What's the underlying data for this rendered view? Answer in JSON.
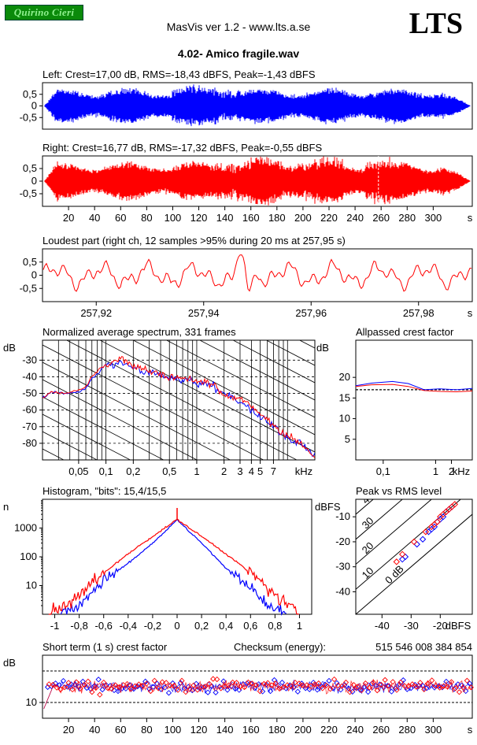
{
  "header": {
    "badge_text": "Quirino Cieri",
    "app_title": "MasVis ver 1.2 - www.lts.a.se",
    "logo": "LTS",
    "file_name": "4.02- Amico fragile.wav"
  },
  "colors": {
    "left": "#0000ff",
    "right": "#ff0000",
    "grid": "#000000"
  },
  "chart_data": [
    {
      "id": "left-waveform",
      "type": "area",
      "title": "Left: Crest=17,00 dB, RMS=-18,43 dBFS, Peak=-1,43 dBFS",
      "yticks": [
        "0,5",
        "0",
        "-0,5"
      ],
      "ytick_values": [
        0.5,
        0,
        -0.5
      ],
      "ylim": [
        -1,
        1
      ],
      "xlim": [
        0,
        330
      ],
      "series": [
        {
          "values": "audio waveform envelope"
        }
      ]
    },
    {
      "id": "right-waveform",
      "type": "area",
      "title": "Right: Crest=16,77 dB, RMS=-17,32 dBFS, Peak=-0,55 dBFS",
      "yticks": [
        "0,5",
        "0",
        "-0,5"
      ],
      "ytick_values": [
        0.5,
        0,
        -0.5
      ],
      "ylim": [
        -1,
        1
      ],
      "xlim": [
        0,
        330
      ],
      "xticks": [
        "20",
        "40",
        "60",
        "80",
        "100",
        "120",
        "140",
        "160",
        "180",
        "200",
        "220",
        "240",
        "260",
        "280",
        "300",
        "s"
      ],
      "xtick_values": [
        20,
        40,
        60,
        80,
        100,
        120,
        140,
        160,
        180,
        200,
        220,
        240,
        260,
        280,
        300
      ],
      "marker_x": 257.95
    },
    {
      "id": "loudest-part",
      "type": "line",
      "title": "Loudest part (right ch, 12 samples >95% during 20 ms at 257,95 s)",
      "yticks": [
        "0,5",
        "0",
        "-0,5"
      ],
      "ytick_values": [
        0.5,
        0,
        -0.5
      ],
      "xlim": [
        257.91,
        257.99
      ],
      "xticks": [
        "257,92",
        "257,94",
        "257,96",
        "257,98",
        "s"
      ],
      "xtick_values": [
        257.92,
        257.94,
        257.96,
        257.98
      ]
    },
    {
      "id": "spectrum",
      "type": "line",
      "title": "Normalized average spectrum, 331 frames",
      "ylabel": "dB",
      "yticks": [
        "-30",
        "-40",
        "-50",
        "-60",
        "-70",
        "-80"
      ],
      "ytick_values": [
        -30,
        -40,
        -50,
        -60,
        -70,
        -80
      ],
      "ylim": [
        -90,
        -18
      ],
      "xscale": "log",
      "xlim": [
        0.02,
        20
      ],
      "xticks": [
        "0,05",
        "0,1",
        "0,2",
        "0,5",
        "1",
        "2",
        "3",
        "4",
        "5",
        "7",
        "kHz"
      ],
      "xtick_values": [
        0.05,
        0.1,
        0.2,
        0.5,
        1,
        2,
        3,
        4,
        5,
        7
      ],
      "series": [
        {
          "color": "#0000ff",
          "x": [
            0.02,
            0.025,
            0.035,
            0.05,
            0.06,
            0.07,
            0.08,
            0.1,
            0.12,
            0.15,
            0.2,
            0.3,
            0.5,
            0.7,
            1,
            1.5,
            2,
            3,
            4,
            5,
            7,
            10,
            14,
            20
          ],
          "y": [
            -53,
            -49,
            -50,
            -49,
            -47,
            -41,
            -38,
            -33,
            -34,
            -31,
            -35,
            -37,
            -41,
            -41,
            -44,
            -45,
            -50,
            -55,
            -60,
            -64,
            -70,
            -77,
            -80,
            -88
          ]
        },
        {
          "color": "#ff0000",
          "x": [
            0.02,
            0.025,
            0.035,
            0.05,
            0.06,
            0.07,
            0.08,
            0.1,
            0.12,
            0.15,
            0.2,
            0.3,
            0.5,
            0.7,
            1,
            1.5,
            2,
            3,
            4,
            5,
            7,
            10,
            14,
            20
          ],
          "y": [
            -53,
            -49,
            -50,
            -48,
            -46,
            -40,
            -37,
            -33,
            -31,
            -28,
            -34,
            -36,
            -40,
            -40,
            -43,
            -44,
            -51,
            -53,
            -58,
            -62,
            -69,
            -76,
            -80,
            -89
          ]
        }
      ]
    },
    {
      "id": "allpassed-crest",
      "type": "line",
      "title": "Allpassed crest factor",
      "ylabel": "dB",
      "yticks": [
        "20",
        "15",
        "10",
        "5"
      ],
      "ytick_values": [
        20,
        15,
        10,
        5
      ],
      "ylim": [
        0,
        29
      ],
      "xscale": "log",
      "xlim": [
        0.03,
        5
      ],
      "xticks": [
        "0,1",
        "1",
        "2",
        "kHz"
      ],
      "xtick_values": [
        0.1,
        1,
        2
      ],
      "reference_line": 17,
      "series": [
        {
          "color": "#0000ff",
          "x": [
            0.03,
            0.06,
            0.15,
            0.3,
            0.6,
            1.2,
            2.5,
            5
          ],
          "y": [
            18,
            18.6,
            19,
            18.5,
            17,
            17.2,
            17,
            17.3
          ]
        },
        {
          "color": "#ff0000",
          "x": [
            0.03,
            0.06,
            0.15,
            0.3,
            0.6,
            1.2,
            2.5,
            5
          ],
          "y": [
            17.8,
            18.2,
            18.3,
            17.8,
            16.8,
            16.6,
            16.5,
            16.7
          ]
        }
      ]
    },
    {
      "id": "histogram",
      "type": "line",
      "title": "Histogram, \"bits\": 15,4/15,5",
      "ylabel": "n",
      "yscale": "log",
      "yticks": [
        "1000",
        "100",
        "10"
      ],
      "ytick_values": [
        1000,
        100,
        10
      ],
      "ylim": [
        1,
        10000
      ],
      "xlim": [
        -1.1,
        1.1
      ],
      "xticks": [
        "-1",
        "-0,8",
        "-0,6",
        "-0,4",
        "-0,2",
        "0",
        "0,2",
        "0,4",
        "0,6",
        "0,8",
        "1"
      ],
      "xtick_values": [
        -1,
        -0.8,
        -0.6,
        -0.4,
        -0.2,
        0,
        0.2,
        0.4,
        0.6,
        0.8,
        1
      ],
      "series": [
        {
          "color": "#0000ff",
          "x": [
            -0.95,
            -0.8,
            -0.6,
            -0.4,
            -0.2,
            -0.05,
            0,
            0.05,
            0.2,
            0.4,
            0.6,
            0.75,
            0.9
          ],
          "y": [
            1,
            2,
            15,
            60,
            300,
            1200,
            2000,
            1200,
            300,
            40,
            8,
            2,
            1
          ]
        },
        {
          "color": "#ff0000",
          "x": [
            -1.05,
            -0.9,
            -0.7,
            -0.5,
            -0.3,
            -0.1,
            0,
            0.1,
            0.3,
            0.5,
            0.7,
            0.85,
            1.0
          ],
          "y": [
            1,
            2,
            12,
            60,
            260,
            1000,
            2000,
            1000,
            260,
            60,
            12,
            3,
            1
          ]
        }
      ],
      "spike": {
        "x": 0,
        "y": 5000
      }
    },
    {
      "id": "peak-vs-rms",
      "type": "scatter",
      "title": "Peak vs RMS level",
      "ylabel": "dBFS",
      "xlabel": "dBFS",
      "yticks": [
        "-10",
        "-20",
        "-30",
        "-40"
      ],
      "ytick_values": [
        -10,
        -20,
        -30,
        -40
      ],
      "ylim": [
        -49,
        -3
      ],
      "xticks": [
        "-40",
        "-30",
        "-20"
      ],
      "xtick_values": [
        -40,
        -30,
        -20
      ],
      "xlim": [
        -49,
        -9
      ],
      "diagonal_labels": [
        "40",
        "30",
        "20",
        "10",
        "0 dB"
      ],
      "series": [
        {
          "color": "#0000ff",
          "marker": "diamond",
          "points": [
            [
              -33,
              -27
            ],
            [
              -32,
              -26
            ],
            [
              -28,
              -21
            ],
            [
              -26,
              -19
            ],
            [
              -24,
              -16
            ],
            [
              -23,
              -15
            ],
            [
              -22,
              -14
            ],
            [
              -21,
              -12
            ],
            [
              -20,
              -11
            ],
            [
              -19,
              -10
            ],
            [
              -18,
              -8
            ],
            [
              -17,
              -7
            ],
            [
              -16,
              -6
            ]
          ]
        },
        {
          "color": "#ff0000",
          "marker": "diamond",
          "points": [
            [
              -35,
              -28
            ],
            [
              -33,
              -25
            ],
            [
              -29,
              -20
            ],
            [
              -25,
              -16
            ],
            [
              -23,
              -14
            ],
            [
              -22,
              -13
            ],
            [
              -21,
              -12
            ],
            [
              -20,
              -10
            ],
            [
              -19,
              -9
            ],
            [
              -18,
              -8
            ],
            [
              -17,
              -7
            ],
            [
              -16,
              -6
            ],
            [
              -15,
              -5
            ]
          ]
        }
      ]
    },
    {
      "id": "short-term-crest",
      "type": "scatter",
      "title": "Short term (1 s) crest factor",
      "checksum_label": "Checksum (energy):",
      "checksum_value": "515 546 008 384 854",
      "ylabel": "dB",
      "yticks": [
        "10"
      ],
      "ytick_values": [
        10
      ],
      "ylim": [
        5,
        25
      ],
      "dashed_levels": [
        20,
        10
      ],
      "xlim": [
        0,
        330
      ],
      "xticks": [
        "20",
        "40",
        "60",
        "80",
        "100",
        "120",
        "140",
        "160",
        "180",
        "200",
        "220",
        "240",
        "260",
        "280",
        "300",
        "s"
      ],
      "xtick_values": [
        20,
        40,
        60,
        80,
        100,
        120,
        140,
        160,
        180,
        200,
        220,
        240,
        260,
        280,
        300
      ],
      "series": [
        {
          "color": "#0000ff",
          "mean": 15
        },
        {
          "color": "#ff0000",
          "mean": 15
        }
      ]
    }
  ]
}
